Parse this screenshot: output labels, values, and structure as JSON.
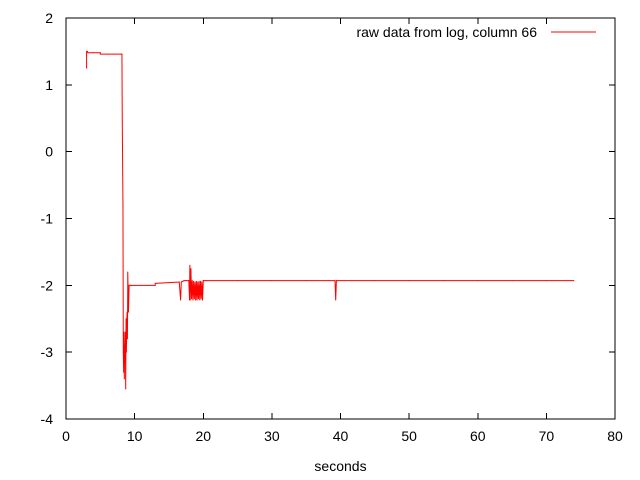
{
  "chart_data": {
    "type": "line",
    "title": "",
    "xlabel": "seconds",
    "ylabel": "",
    "xlim": [
      0,
      80
    ],
    "ylim": [
      -4,
      2
    ],
    "xticks": [
      0,
      10,
      20,
      30,
      40,
      50,
      60,
      70,
      80
    ],
    "yticks": [
      -4,
      -3,
      -2,
      -1,
      0,
      1,
      2
    ],
    "grid": false,
    "legend_position": "top-right",
    "colors": {
      "series": "#ff0000",
      "axes": "#000000",
      "background": "#ffffff"
    },
    "series": [
      {
        "name": "raw data from log, column 66",
        "x": [
          3.0,
          3.0,
          3.1,
          3.2,
          4.0,
          5.0,
          5.0,
          6.0,
          7.0,
          8.0,
          8.15,
          8.2,
          8.3,
          8.35,
          8.4,
          8.45,
          8.5,
          8.55,
          8.6,
          8.65,
          8.7,
          8.75,
          8.8,
          8.85,
          8.9,
          8.95,
          9.0,
          9.0,
          9.05,
          9.1,
          9.2,
          9.4,
          9.6,
          10.0,
          12.0,
          13.0,
          13.0,
          15.0,
          16.5,
          16.7,
          16.8,
          17.0,
          17.2,
          17.5,
          17.9,
          18.0,
          18.05,
          18.1,
          18.2,
          18.3,
          18.4,
          18.5,
          18.6,
          18.7,
          18.8,
          18.9,
          19.0,
          19.1,
          19.2,
          19.3,
          19.4,
          19.5,
          19.6,
          19.7,
          19.8,
          19.9,
          20.0,
          20.1,
          20.5,
          25.0,
          30.0,
          35.0,
          39.2,
          39.3,
          39.4,
          45.0,
          50.0,
          55.0,
          60.0,
          65.0,
          70.0,
          74.0
        ],
        "y": [
          1.25,
          1.5,
          1.5,
          1.48,
          1.48,
          1.48,
          1.46,
          1.46,
          1.46,
          1.46,
          1.46,
          0.45,
          -0.8,
          -3.0,
          -3.3,
          -2.7,
          -3.4,
          -2.9,
          -3.0,
          -2.7,
          -3.55,
          -2.5,
          -3.0,
          -2.6,
          -2.4,
          -2.8,
          -2.0,
          -1.8,
          -2.1,
          -2.4,
          -2.0,
          -2.0,
          -2.0,
          -2.0,
          -2.0,
          -2.0,
          -1.97,
          -1.96,
          -1.95,
          -2.22,
          -1.95,
          -1.94,
          -1.93,
          -1.93,
          -1.93,
          -2.22,
          -1.7,
          -2.22,
          -1.75,
          -2.2,
          -1.93,
          -2.22,
          -1.94,
          -2.2,
          -1.95,
          -2.22,
          -1.94,
          -2.22,
          -1.95,
          -2.2,
          -1.94,
          -2.22,
          -1.94,
          -2.2,
          -1.95,
          -2.22,
          -1.93,
          -1.93,
          -1.93,
          -1.93,
          -1.93,
          -1.93,
          -1.93,
          -2.22,
          -1.93,
          -1.93,
          -1.93,
          -1.93,
          -1.93,
          -1.93,
          -1.93,
          -1.93
        ]
      }
    ]
  }
}
